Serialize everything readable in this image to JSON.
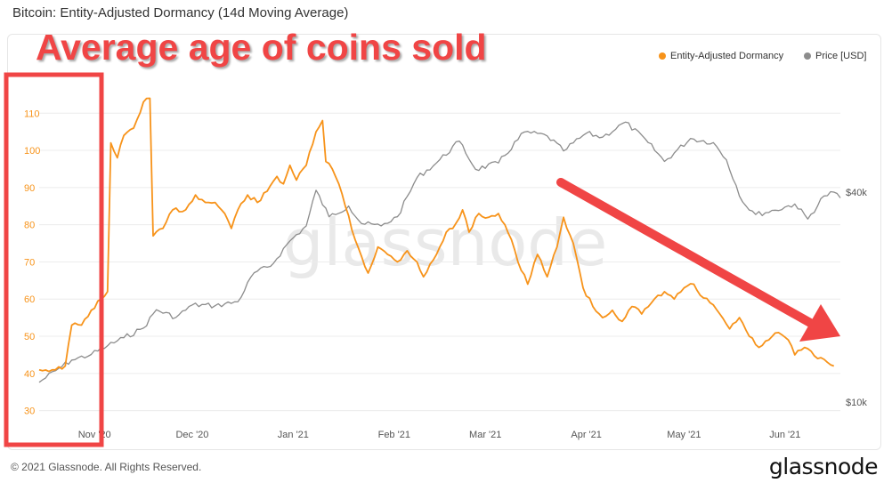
{
  "header": {
    "title": "Bitcoin: Entity-Adjusted Dormancy (14d Moving Average)"
  },
  "annotation": {
    "callout": "Average age of coins sold"
  },
  "footer": {
    "copyright": "© 2021 Glassnode. All Rights Reserved.",
    "brand": "glassnode",
    "watermark": "glassnode"
  },
  "colors": {
    "dormancy": "#f7931a",
    "price": "#8c8c8c",
    "callout": "#f04545"
  },
  "chart_data": {
    "type": "line",
    "title": "Bitcoin: Entity-Adjusted Dormancy (14d Moving Average)",
    "x_ticks": [
      "Nov '20",
      "Dec '20",
      "Jan '21",
      "Feb '21",
      "Mar '21",
      "Apr '21",
      "May '21",
      "Jun '21"
    ],
    "x_range": [
      "2020-10-15",
      "2021-06-18"
    ],
    "y_left": {
      "ticks": [
        30,
        40,
        50,
        60,
        70,
        80,
        90,
        100,
        110
      ],
      "range": [
        28,
        117
      ]
    },
    "y_right": {
      "ticks": [
        "$10k",
        "$40k"
      ],
      "scale": "log",
      "range_usd": [
        9000,
        80000
      ]
    },
    "legend": {
      "placement": "top-right"
    },
    "grid": "horizontal",
    "series": [
      {
        "name": "Entity-Adjusted Dormancy",
        "axis": "left",
        "points": [
          [
            "2020-10-15",
            41
          ],
          [
            "2020-10-20",
            41
          ],
          [
            "2020-10-23",
            42
          ],
          [
            "2020-10-25",
            53
          ],
          [
            "2020-10-28",
            53
          ],
          [
            "2020-10-31",
            57
          ],
          [
            "2020-11-03",
            60
          ],
          [
            "2020-11-05",
            62
          ],
          [
            "2020-11-06",
            102
          ],
          [
            "2020-11-08",
            98
          ],
          [
            "2020-11-10",
            104
          ],
          [
            "2020-11-13",
            106
          ],
          [
            "2020-11-16",
            113
          ],
          [
            "2020-11-18",
            114
          ],
          [
            "2020-11-19",
            77
          ],
          [
            "2020-11-22",
            79
          ],
          [
            "2020-11-25",
            84
          ],
          [
            "2020-11-29",
            84
          ],
          [
            "2020-12-02",
            88
          ],
          [
            "2020-12-05",
            86
          ],
          [
            "2020-12-08",
            86
          ],
          [
            "2020-12-11",
            83
          ],
          [
            "2020-12-13",
            79
          ],
          [
            "2020-12-15",
            84
          ],
          [
            "2020-12-18",
            88
          ],
          [
            "2020-12-21",
            86
          ],
          [
            "2020-12-24",
            89
          ],
          [
            "2020-12-27",
            93
          ],
          [
            "2020-12-29",
            91
          ],
          [
            "2020-12-31",
            96
          ],
          [
            "2021-01-02",
            92
          ],
          [
            "2021-01-05",
            96
          ],
          [
            "2021-01-08",
            105
          ],
          [
            "2021-01-10",
            108
          ],
          [
            "2021-01-11",
            97
          ],
          [
            "2021-01-13",
            95
          ],
          [
            "2021-01-15",
            91
          ],
          [
            "2021-01-17",
            85
          ],
          [
            "2021-01-20",
            76
          ],
          [
            "2021-01-24",
            67
          ],
          [
            "2021-01-27",
            74
          ],
          [
            "2021-01-30",
            72
          ],
          [
            "2021-02-02",
            70
          ],
          [
            "2021-02-05",
            73
          ],
          [
            "2021-02-08",
            70
          ],
          [
            "2021-02-10",
            66
          ],
          [
            "2021-02-14",
            72
          ],
          [
            "2021-02-17",
            78
          ],
          [
            "2021-02-19",
            79
          ],
          [
            "2021-02-22",
            84
          ],
          [
            "2021-02-24",
            78
          ],
          [
            "2021-02-27",
            83
          ],
          [
            "2021-03-02",
            82
          ],
          [
            "2021-03-05",
            83
          ],
          [
            "2021-03-07",
            80
          ],
          [
            "2021-03-09",
            76
          ],
          [
            "2021-03-11",
            70
          ],
          [
            "2021-03-14",
            64
          ],
          [
            "2021-03-17",
            72
          ],
          [
            "2021-03-20",
            66
          ],
          [
            "2021-03-23",
            74
          ],
          [
            "2021-03-25",
            82
          ],
          [
            "2021-03-28",
            75
          ],
          [
            "2021-03-31",
            63
          ],
          [
            "2021-04-03",
            58
          ],
          [
            "2021-04-06",
            55
          ],
          [
            "2021-04-09",
            57
          ],
          [
            "2021-04-12",
            54
          ],
          [
            "2021-04-15",
            58
          ],
          [
            "2021-04-18",
            56
          ],
          [
            "2021-04-21",
            59
          ],
          [
            "2021-04-25",
            62
          ],
          [
            "2021-04-28",
            60
          ],
          [
            "2021-05-01",
            63
          ],
          [
            "2021-05-04",
            64
          ],
          [
            "2021-05-06",
            61
          ],
          [
            "2021-05-09",
            59
          ],
          [
            "2021-05-12",
            56
          ],
          [
            "2021-05-15",
            52
          ],
          [
            "2021-05-18",
            55
          ],
          [
            "2021-05-21",
            50
          ],
          [
            "2021-05-24",
            47
          ],
          [
            "2021-05-27",
            49
          ],
          [
            "2021-05-30",
            51
          ],
          [
            "2021-06-02",
            49
          ],
          [
            "2021-06-04",
            45
          ],
          [
            "2021-06-07",
            47
          ],
          [
            "2021-06-09",
            46
          ],
          [
            "2021-06-11",
            44
          ],
          [
            "2021-06-14",
            43
          ],
          [
            "2021-06-16",
            42
          ]
        ]
      },
      {
        "name": "Price [USD]",
        "axis": "right",
        "points": [
          [
            "2020-10-15",
            11400
          ],
          [
            "2020-10-20",
            12300
          ],
          [
            "2020-10-25",
            13200
          ],
          [
            "2020-10-31",
            13700
          ],
          [
            "2020-11-05",
            14500
          ],
          [
            "2020-11-10",
            15300
          ],
          [
            "2020-11-16",
            16300
          ],
          [
            "2020-11-20",
            18400
          ],
          [
            "2020-11-26",
            17500
          ],
          [
            "2020-12-01",
            19000
          ],
          [
            "2020-12-08",
            18900
          ],
          [
            "2020-12-15",
            19400
          ],
          [
            "2020-12-20",
            23500
          ],
          [
            "2020-12-25",
            24500
          ],
          [
            "2020-12-31",
            29000
          ],
          [
            "2021-01-05",
            32000
          ],
          [
            "2021-01-08",
            40500
          ],
          [
            "2021-01-12",
            34000
          ],
          [
            "2021-01-18",
            36500
          ],
          [
            "2021-01-22",
            32500
          ],
          [
            "2021-01-28",
            32000
          ],
          [
            "2021-02-02",
            34000
          ],
          [
            "2021-02-08",
            44000
          ],
          [
            "2021-02-14",
            48500
          ],
          [
            "2021-02-21",
            56000
          ],
          [
            "2021-02-26",
            46500
          ],
          [
            "2021-03-05",
            48500
          ],
          [
            "2021-03-13",
            59500
          ],
          [
            "2021-03-20",
            58000
          ],
          [
            "2021-03-25",
            52500
          ],
          [
            "2021-04-01",
            59000
          ],
          [
            "2021-04-06",
            57500
          ],
          [
            "2021-04-13",
            63500
          ],
          [
            "2021-04-20",
            55500
          ],
          [
            "2021-04-25",
            49000
          ],
          [
            "2021-05-03",
            57000
          ],
          [
            "2021-05-10",
            55500
          ],
          [
            "2021-05-14",
            49500
          ],
          [
            "2021-05-19",
            37500
          ],
          [
            "2021-05-23",
            34500
          ],
          [
            "2021-05-29",
            35500
          ],
          [
            "2021-06-04",
            37000
          ],
          [
            "2021-06-08",
            33500
          ],
          [
            "2021-06-13",
            39000
          ],
          [
            "2021-06-16",
            40000
          ],
          [
            "2021-06-18",
            38500
          ]
        ]
      }
    ]
  }
}
